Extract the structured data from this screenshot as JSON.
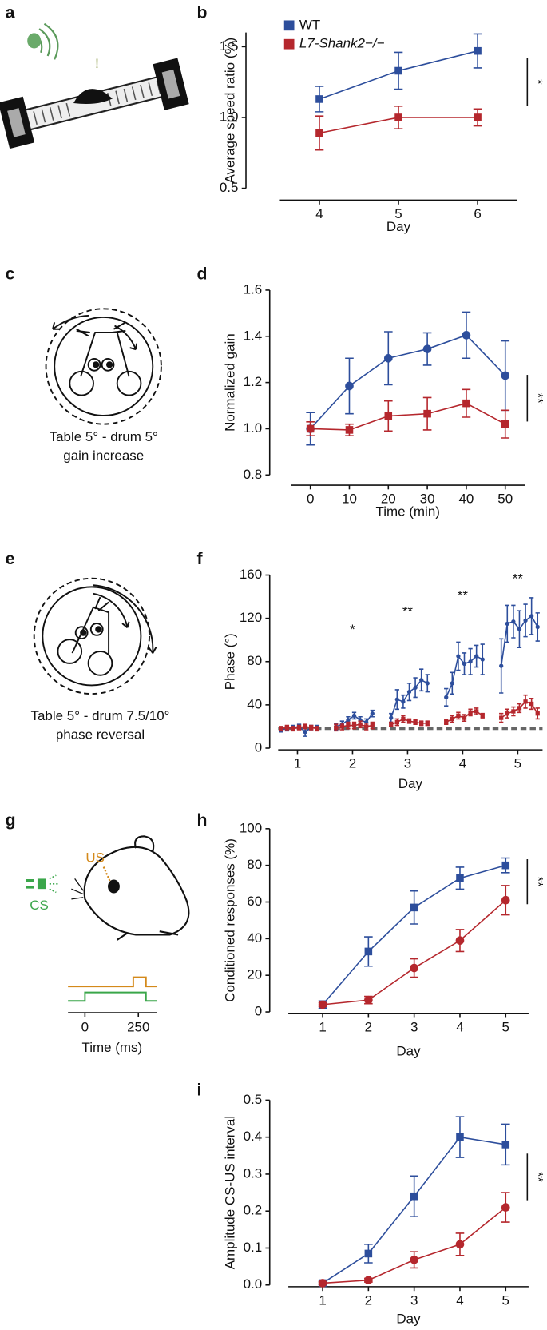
{
  "panel_labels": [
    "a",
    "b",
    "c",
    "d",
    "e",
    "f",
    "g",
    "h",
    "i"
  ],
  "illustrations": {
    "a": {
      "mark": "!"
    },
    "c": {
      "caption": [
        "Table 5° - drum 5°",
        "gain increase"
      ]
    },
    "e": {
      "caption": [
        "Table 5° - drum 7.5/10°",
        "phase reversal"
      ]
    },
    "g": {
      "us": "US",
      "cs": "CS",
      "xticks": [
        0,
        250
      ],
      "xlabel": "Time (ms)"
    }
  },
  "chart_data": [
    {
      "type": "line",
      "xlabel": "Day",
      "ylabel": "Average speed ratio (%)",
      "x": [
        4,
        5,
        6
      ],
      "xlim": [
        3.5,
        6.5
      ],
      "xticks": [
        4,
        5,
        6
      ],
      "ylim": [
        0.5,
        1.6
      ],
      "yticks": [
        {
          "value": 0.5,
          "label": "0.5"
        },
        {
          "value": 1.0,
          "label": "1.0"
        },
        {
          "value": 1.5,
          "label": "1.5"
        }
      ],
      "legend": "upper left",
      "significance": "*",
      "series": [
        {
          "name": "WT",
          "color": "#2d4e9c",
          "marker": "square",
          "values": [
            1.13,
            1.33,
            1.47
          ],
          "errors": [
            0.09,
            0.13,
            0.12
          ]
        },
        {
          "name": "L7-Shank2−/−",
          "color": "#b5272d",
          "marker": "square",
          "values": [
            0.89,
            1.0,
            1.0
          ],
          "errors": [
            0.12,
            0.08,
            0.06
          ]
        }
      ]
    },
    {
      "type": "line",
      "xlabel": "Time (min)",
      "ylabel": "Normalized gain",
      "x": [
        0,
        10,
        20,
        30,
        40,
        50
      ],
      "xlim": [
        -5,
        55
      ],
      "xticks": [
        0,
        10,
        20,
        30,
        40,
        50
      ],
      "ylim": [
        0.8,
        1.6
      ],
      "yticks": [
        {
          "value": 0.8,
          "label": "0.8"
        },
        {
          "value": 1.0,
          "label": "1.0"
        },
        {
          "value": 1.2,
          "label": "1.2"
        },
        {
          "value": 1.4,
          "label": "1.4"
        },
        {
          "value": 1.6,
          "label": "1.6"
        }
      ],
      "significance": "**",
      "series": [
        {
          "color": "#2d4e9c",
          "marker": "circle",
          "values": [
            1.0,
            1.185,
            1.305,
            1.345,
            1.405,
            1.23
          ],
          "errors": [
            0.07,
            0.12,
            0.115,
            0.07,
            0.1,
            0.15
          ]
        },
        {
          "color": "#b5272d",
          "marker": "square",
          "values": [
            1.0,
            0.995,
            1.055,
            1.065,
            1.11,
            1.02
          ],
          "errors": [
            0.03,
            0.025,
            0.065,
            0.07,
            0.06,
            0.06
          ]
        }
      ]
    },
    {
      "type": "line",
      "xlabel": "Day",
      "ylabel": "Phase (°)",
      "x": [
        0.7,
        0.81,
        0.92,
        1.03,
        1.14,
        1.25,
        1.36,
        1.7,
        1.81,
        1.92,
        2.03,
        2.14,
        2.25,
        2.36,
        2.7,
        2.81,
        2.92,
        3.03,
        3.14,
        3.25,
        3.36,
        3.7,
        3.81,
        3.92,
        4.03,
        4.14,
        4.25,
        4.36,
        4.7,
        4.81,
        4.92,
        5.03,
        5.14,
        5.25,
        5.36
      ],
      "xlim": [
        0.65,
        5.45
      ],
      "xticks": [
        1,
        2,
        3,
        4,
        5
      ],
      "ylim": [
        0,
        160
      ],
      "yticks": [
        0,
        40,
        80,
        120,
        160
      ],
      "hline": 18,
      "hline_color": "#666666",
      "annotations": [
        {
          "x": 2,
          "label": "*"
        },
        {
          "x": 3,
          "label": "**"
        },
        {
          "x": 4,
          "label": "**"
        },
        {
          "x": 5,
          "label": "**"
        }
      ],
      "series": [
        {
          "color": "#2d4e9c",
          "marker": "dot",
          "values": [
            17,
            18,
            19,
            20,
            15,
            19,
            19,
            20,
            22,
            26,
            30,
            26,
            24,
            32,
            28,
            45,
            43,
            52,
            56,
            63,
            60,
            47,
            60,
            85,
            78,
            80,
            85,
            82,
            76,
            115,
            117,
            110,
            118,
            122,
            112
          ],
          "errors": [
            2,
            2,
            2,
            2,
            4,
            2,
            2,
            3,
            3,
            3,
            3,
            3,
            3,
            3,
            4,
            9,
            6,
            8,
            9,
            10,
            8,
            8,
            10,
            13,
            10,
            12,
            10,
            14,
            25,
            17,
            15,
            17,
            15,
            17,
            13
          ]
        },
        {
          "color": "#b5272d",
          "marker": "small-square",
          "values": [
            18,
            19,
            18,
            19,
            20,
            19,
            18,
            19,
            20,
            21,
            21,
            22,
            20,
            21,
            22,
            24,
            27,
            25,
            24,
            23,
            23,
            24,
            27,
            30,
            28,
            33,
            34,
            30,
            28,
            32,
            34,
            37,
            43,
            41,
            32
          ],
          "errors": [
            2,
            2,
            2,
            2,
            2,
            2,
            2,
            3,
            3,
            3,
            3,
            3,
            3,
            3,
            2,
            3,
            3,
            2,
            2,
            2,
            2,
            2,
            3,
            3,
            3,
            3,
            3,
            2,
            4,
            4,
            4,
            4,
            6,
            5,
            5
          ]
        }
      ]
    },
    {
      "type": "line",
      "xlabel": "Day",
      "ylabel": "Conditioned responses (%)",
      "x": [
        1,
        2,
        3,
        4,
        5
      ],
      "xlim": [
        0.25,
        5.5
      ],
      "xticks": [
        1,
        2,
        3,
        4,
        5
      ],
      "ylim": [
        0,
        100
      ],
      "yticks": [
        0,
        20,
        40,
        60,
        80,
        100
      ],
      "significance": "**",
      "series": [
        {
          "color": "#2d4e9c",
          "marker": "square",
          "values": [
            4,
            33,
            57,
            73,
            80
          ],
          "errors": [
            2,
            8,
            9,
            6,
            4
          ]
        },
        {
          "color": "#b5272d",
          "marker": "circle",
          "values": [
            4,
            6.5,
            24,
            39,
            61
          ],
          "errors": [
            1,
            2,
            5,
            6,
            8
          ]
        }
      ]
    },
    {
      "type": "line",
      "xlabel": "Day",
      "ylabel": "Amplitude CS-US interval",
      "x": [
        1,
        2,
        3,
        4,
        5
      ],
      "xlim": [
        0.25,
        5.5
      ],
      "xticks": [
        1,
        2,
        3,
        4,
        5
      ],
      "ylim": [
        0,
        0.5
      ],
      "yticks": [
        {
          "value": 0,
          "label": "0.0"
        },
        {
          "value": 0.1,
          "label": "0.1"
        },
        {
          "value": 0.2,
          "label": "0.2"
        },
        {
          "value": 0.3,
          "label": "0.3"
        },
        {
          "value": 0.4,
          "label": "0.4"
        },
        {
          "value": 0.5,
          "label": "0.5"
        }
      ],
      "significance": "**",
      "series": [
        {
          "color": "#2d4e9c",
          "marker": "square",
          "values": [
            0.005,
            0.085,
            0.24,
            0.4,
            0.38
          ],
          "errors": [
            0.005,
            0.025,
            0.055,
            0.055,
            0.055
          ]
        },
        {
          "color": "#b5272d",
          "marker": "circle",
          "values": [
            0.005,
            0.013,
            0.068,
            0.11,
            0.21
          ],
          "errors": [
            0.003,
            0.005,
            0.022,
            0.03,
            0.04
          ]
        }
      ]
    }
  ]
}
